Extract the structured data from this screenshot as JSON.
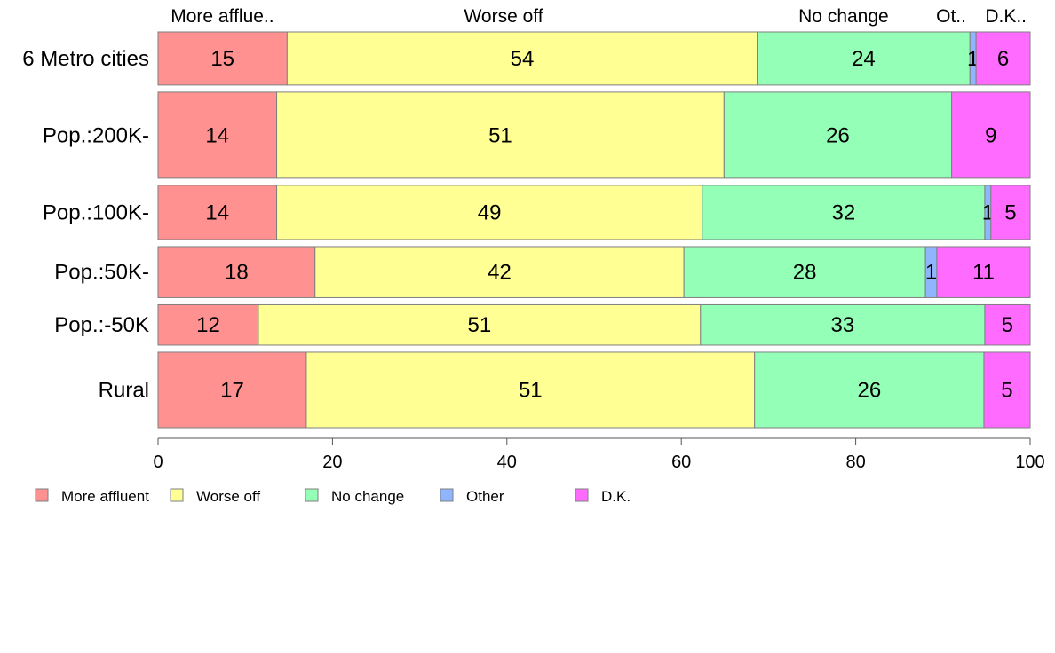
{
  "chart_data": {
    "type": "bar",
    "orientation": "horizontal",
    "stacked": true,
    "title": "",
    "xlabel": "",
    "ylabel": "",
    "xlim": [
      0,
      100
    ],
    "x_ticks": [
      0,
      20,
      40,
      60,
      80,
      100
    ],
    "grid": false,
    "legend_position": "bottom-left",
    "categories": [
      "6 Metro cities",
      "Pop.:200K-",
      "Pop.:100K-",
      "Pop.:50K-",
      "Pop.:-50K",
      "Rural"
    ],
    "relative_widths": [
      1.0,
      1.62,
      1.02,
      0.96,
      0.76,
      1.42
    ],
    "top_labels": [
      "More afflue..",
      "Worse off",
      "No change",
      "Ot..",
      "D.K.."
    ],
    "series": [
      {
        "name": "More affluent",
        "color": "#FF9290",
        "values": [
          14.8,
          13.6,
          13.6,
          18.0,
          11.5,
          17.0
        ]
      },
      {
        "name": "Worse off",
        "color": "#FFFF94",
        "values": [
          53.9,
          51.3,
          48.8,
          42.3,
          50.7,
          51.4
        ]
      },
      {
        "name": "No change",
        "color": "#94FFB6",
        "values": [
          24.4,
          26.1,
          32.4,
          27.7,
          32.6,
          26.3
        ]
      },
      {
        "name": "Other",
        "color": "#8FB5FF",
        "values": [
          0.7,
          0.0,
          0.7,
          1.3,
          0.0,
          0.0
        ]
      },
      {
        "name": "D.K.",
        "color": "#FF6BFF",
        "values": [
          6.2,
          9.0,
          4.5,
          10.7,
          5.2,
          5.3
        ]
      }
    ],
    "data_labels": [
      [
        "15",
        "54",
        "24",
        "1",
        "6"
      ],
      [
        "14",
        "51",
        "26",
        "",
        "9"
      ],
      [
        "14",
        "49",
        "32",
        "1",
        "5"
      ],
      [
        "18",
        "42",
        "28",
        "1",
        "11"
      ],
      [
        "12",
        "51",
        "33",
        "",
        "5"
      ],
      [
        "17",
        "51",
        "26",
        "",
        "5"
      ]
    ]
  }
}
